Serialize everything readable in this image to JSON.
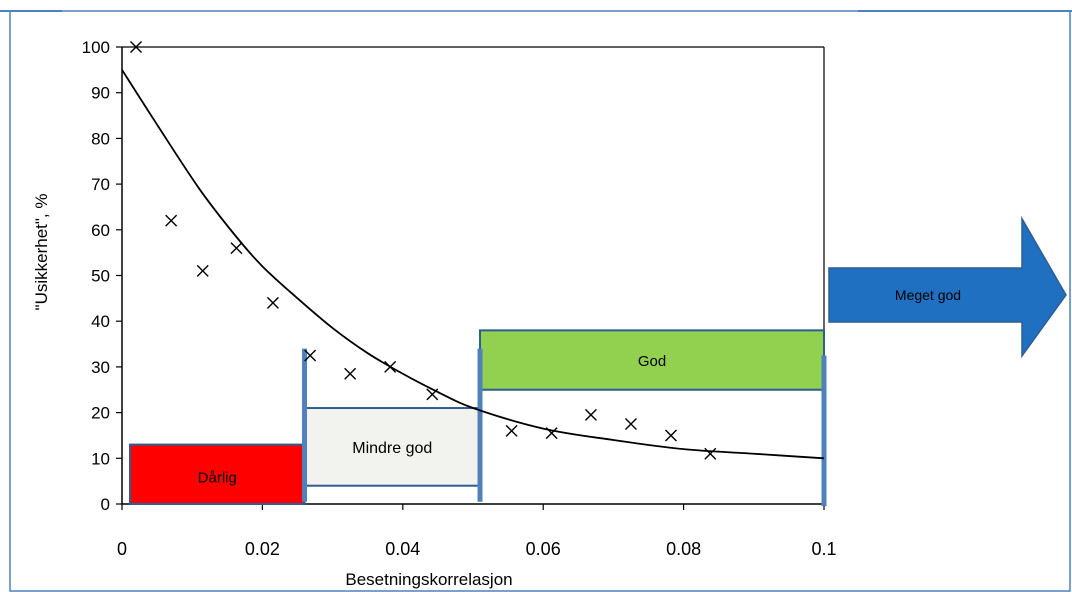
{
  "colors": {
    "frame_border": "#4f81bd",
    "axis": "#000000",
    "band_dark_blue": "#4f81bd",
    "darlig_fill": "#ff0000",
    "mindre_god_fill": "#f2f2ee",
    "god_fill": "#92d050",
    "meget_god_fill": "#1f70c1",
    "box_border": "#2e5d94"
  },
  "chart_data": {
    "type": "scatter",
    "xlabel": "Besetningskorrelasjon",
    "ylabel": "\"Usikkerhet\", %",
    "xlim": [
      0,
      0.1
    ],
    "ylim": [
      0,
      100
    ],
    "x_ticks": [
      0,
      0.02,
      0.04,
      0.06,
      0.08,
      0.1
    ],
    "x_tick_labels": [
      "0",
      "0.02",
      "0.04",
      "0.06",
      "0.08",
      "0.1"
    ],
    "y_ticks": [
      0,
      10,
      20,
      30,
      40,
      50,
      60,
      70,
      80,
      90,
      100
    ],
    "y_tick_labels": [
      "0",
      "10",
      "20",
      "30",
      "40",
      "50",
      "60",
      "70",
      "80",
      "90",
      "100"
    ],
    "series": [
      {
        "kind": "points",
        "marker": "x",
        "x": [
          0.002,
          0.007,
          0.0115,
          0.0163,
          0.0215,
          0.0268,
          0.0325,
          0.0382,
          0.0442,
          0.0555,
          0.0612,
          0.0668,
          0.0725,
          0.0782,
          0.0838
        ],
        "y": [
          100,
          62,
          51,
          56,
          44,
          32.5,
          28.5,
          30,
          24,
          16,
          15.5,
          19.5,
          17.5,
          15,
          11
        ]
      },
      {
        "kind": "curve",
        "x": [
          0,
          0.005,
          0.011,
          0.016,
          0.02,
          0.025,
          0.03,
          0.035,
          0.04,
          0.045,
          0.05,
          0.06,
          0.07,
          0.08,
          0.09,
          0.1
        ],
        "y": [
          95,
          83,
          69,
          59,
          52,
          45,
          38.5,
          33,
          28.5,
          24.5,
          21,
          16.5,
          14,
          12,
          11,
          10
        ]
      }
    ],
    "categories": [
      {
        "label": "Dårlig",
        "x_range": [
          0,
          0.026
        ],
        "y_range": [
          0,
          13
        ]
      },
      {
        "label": "Mindre god",
        "x_range": [
          0.026,
          0.051
        ],
        "y_range": [
          4,
          21
        ]
      },
      {
        "label": "God",
        "x_range": [
          0.051,
          0.1
        ],
        "y_range": [
          25,
          38
        ]
      },
      {
        "label": "Meget god",
        "x_range": [
          0.1,
          null
        ],
        "y_range": [
          37,
          62
        ]
      }
    ],
    "boundaries": [
      0.026,
      0.051,
      0.1
    ]
  }
}
